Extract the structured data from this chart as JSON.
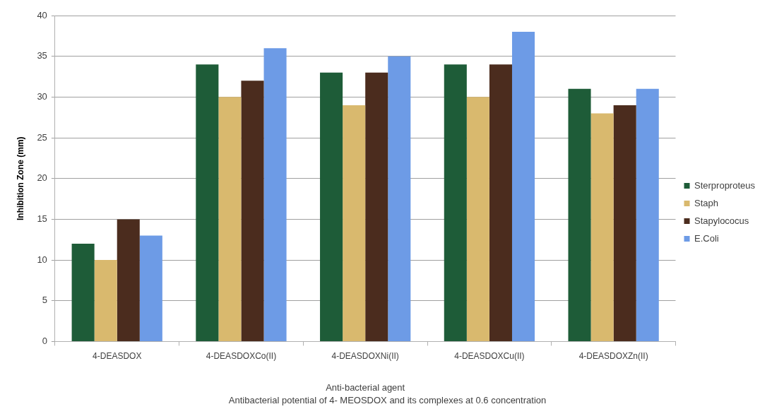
{
  "chart_data": {
    "type": "bar",
    "categories": [
      "4-DEASDOX",
      "4-DEASDOXCo(II)",
      "4-DEASDOXNi(II)",
      "4-DEASDOXCu(II)",
      "4-DEASDOXZn(II)"
    ],
    "series": [
      {
        "name": "Sterproproteus",
        "color": "#1e5c38",
        "values": [
          12,
          34,
          33,
          34,
          31
        ]
      },
      {
        "name": "Staph",
        "color": "#d9b96e",
        "values": [
          10,
          30,
          29,
          30,
          28
        ]
      },
      {
        "name": "Stapylococus",
        "color": "#4b2c1e",
        "values": [
          15,
          32,
          33,
          34,
          29
        ]
      },
      {
        "name": "E.Coli",
        "color": "#6d9be6",
        "values": [
          13,
          36,
          35,
          38,
          31
        ]
      }
    ],
    "xlabel": "Anti-bacterial agent",
    "ylabel": "Inhibition Zone (mm)",
    "annotations": [
      "Antibacterial potential of 4- MEOSDOX and its complexes at 0.6 concentration"
    ],
    "ylim": [
      0,
      40
    ],
    "yticks": [
      0,
      5,
      10,
      15,
      20,
      25,
      30,
      35,
      40
    ],
    "grid": "y",
    "legend": "right"
  }
}
